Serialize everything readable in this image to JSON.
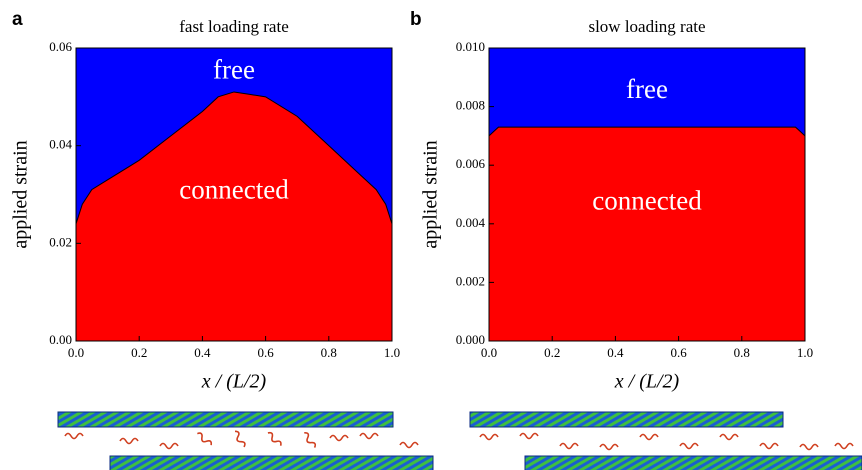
{
  "chart_data": [
    {
      "type": "area",
      "panel": "a",
      "title": "fast loading rate",
      "xlabel": "x / (L/2)",
      "ylabel": "applied strain",
      "x": [
        0,
        0.02,
        0.05,
        0.1,
        0.2,
        0.3,
        0.4,
        0.45,
        0.5,
        0.55,
        0.6,
        0.7,
        0.8,
        0.9,
        0.95,
        0.98,
        1.0
      ],
      "values": [
        0.024,
        0.028,
        0.031,
        0.033,
        0.037,
        0.042,
        0.047,
        0.05,
        0.051,
        0.0505,
        0.05,
        0.046,
        0.04,
        0.034,
        0.031,
        0.028,
        0.024
      ],
      "color_below": "#ff0000",
      "color_above": "#0000ff",
      "xlim": [
        0,
        1
      ],
      "ylim": [
        0,
        0.06
      ],
      "xticks": [
        {
          "value": 0,
          "label": "0.0"
        },
        0.2,
        0.4,
        0.6,
        0.8,
        {
          "value": 1,
          "label": "1.0"
        }
      ],
      "yticks": [
        {
          "value": 0,
          "label": "0.00"
        },
        {
          "value": 0.02,
          "label": "0.02"
        },
        0.04,
        0.06
      ],
      "annotations": [
        {
          "text": "free",
          "x": 0.5,
          "y": 0.055
        },
        {
          "text": "connected",
          "x": 0.5,
          "y": 0.0305
        }
      ]
    },
    {
      "type": "area",
      "panel": "b",
      "title": "slow loading rate",
      "xlabel": "x / (L/2)",
      "ylabel": "applied strain",
      "x": [
        0,
        0.02,
        0.03,
        0.97,
        0.98,
        1.0
      ],
      "values": [
        0.007,
        0.0072,
        0.0073,
        0.0073,
        0.0072,
        0.007
      ],
      "color_below": "#ff0000",
      "color_above": "#0000ff",
      "xlim": [
        0,
        1
      ],
      "ylim": [
        0,
        0.01
      ],
      "xticks": [
        {
          "value": 0,
          "label": "0.0"
        },
        0.2,
        0.4,
        0.6,
        0.8,
        {
          "value": 1,
          "label": "1.0"
        }
      ],
      "yticks": [
        {
          "value": 0,
          "label": "0.000"
        },
        0.002,
        0.004,
        0.006,
        0.008,
        {
          "value": 0.01,
          "label": "0.010"
        }
      ],
      "annotations": [
        {
          "text": "free",
          "x": 0.5,
          "y": 0.0085
        },
        {
          "text": "connected",
          "x": 0.5,
          "y": 0.0047
        }
      ]
    }
  ]
}
